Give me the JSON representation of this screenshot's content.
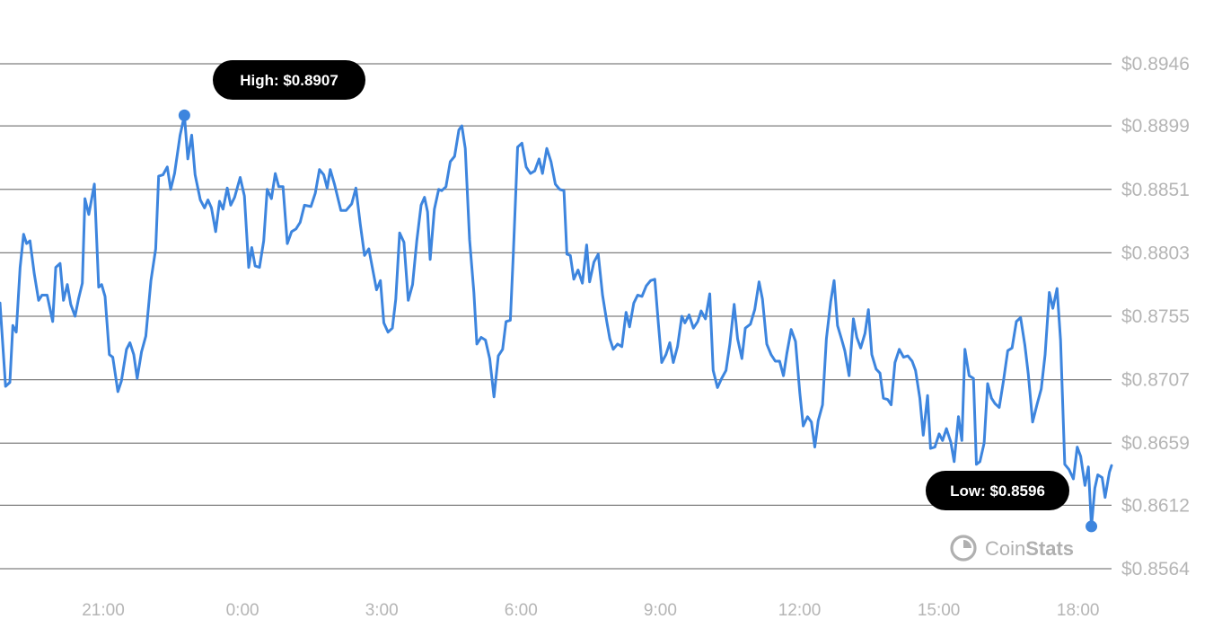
{
  "chart_data": {
    "type": "line",
    "y_ticks": [
      "$0.8946",
      "$0.8899",
      "$0.8851",
      "$0.8803",
      "$0.8755",
      "$0.8707",
      "$0.8659",
      "$0.8612",
      "$0.8564"
    ],
    "y_tick_values": [
      0.8946,
      0.8899,
      0.8851,
      0.8803,
      0.8755,
      0.8707,
      0.8659,
      0.8612,
      0.8564
    ],
    "ylim": [
      0.8564,
      0.8946
    ],
    "x_ticks": [
      {
        "label": "21:00",
        "hour": 21
      },
      {
        "label": "0:00",
        "hour": 24
      },
      {
        "label": "3:00",
        "hour": 27
      },
      {
        "label": "6:00",
        "hour": 30
      },
      {
        "label": "9:00",
        "hour": 33
      },
      {
        "label": "12:00",
        "hour": 36
      },
      {
        "label": "15:00",
        "hour": 39
      },
      {
        "label": "18:00",
        "hour": 42
      }
    ],
    "xlim_hours": [
      18.75,
      42.75
    ],
    "grid": true,
    "line_color": "#3d85de",
    "series": [
      {
        "points": [
          [
            18.75,
            0.8765
          ],
          [
            18.88,
            0.8702
          ],
          [
            18.98,
            0.8705
          ],
          [
            19.05,
            0.8748
          ],
          [
            19.13,
            0.8743
          ],
          [
            19.22,
            0.8792
          ],
          [
            19.3,
            0.8817
          ],
          [
            19.37,
            0.881
          ],
          [
            19.45,
            0.8812
          ],
          [
            19.55,
            0.8787
          ],
          [
            19.65,
            0.8767
          ],
          [
            19.73,
            0.8771
          ],
          [
            19.85,
            0.8771
          ],
          [
            19.98,
            0.8751
          ],
          [
            20.05,
            0.8792
          ],
          [
            20.15,
            0.8795
          ],
          [
            20.23,
            0.8767
          ],
          [
            20.32,
            0.8779
          ],
          [
            20.4,
            0.8764
          ],
          [
            20.5,
            0.8755
          ],
          [
            20.58,
            0.8768
          ],
          [
            20.67,
            0.878
          ],
          [
            20.73,
            0.8844
          ],
          [
            20.82,
            0.8832
          ],
          [
            20.95,
            0.8855
          ],
          [
            21.05,
            0.8777
          ],
          [
            21.12,
            0.8779
          ],
          [
            21.2,
            0.877
          ],
          [
            21.3,
            0.8726
          ],
          [
            21.38,
            0.8724
          ],
          [
            21.5,
            0.8698
          ],
          [
            21.58,
            0.8706
          ],
          [
            21.7,
            0.873
          ],
          [
            21.78,
            0.8735
          ],
          [
            21.87,
            0.8726
          ],
          [
            21.95,
            0.8708
          ],
          [
            22.05,
            0.8728
          ],
          [
            22.15,
            0.874
          ],
          [
            22.27,
            0.8782
          ],
          [
            22.38,
            0.8806
          ],
          [
            22.45,
            0.8861
          ],
          [
            22.55,
            0.8862
          ],
          [
            22.65,
            0.8868
          ],
          [
            22.73,
            0.8851
          ],
          [
            22.82,
            0.8863
          ],
          [
            22.95,
            0.8892
          ],
          [
            23.05,
            0.8907
          ],
          [
            23.13,
            0.8874
          ],
          [
            23.22,
            0.8892
          ],
          [
            23.3,
            0.8862
          ],
          [
            23.42,
            0.8843
          ],
          [
            23.52,
            0.8837
          ],
          [
            23.6,
            0.8843
          ],
          [
            23.68,
            0.8837
          ],
          [
            23.78,
            0.8819
          ],
          [
            23.87,
            0.8842
          ],
          [
            23.95,
            0.8836
          ],
          [
            24.05,
            0.8852
          ],
          [
            24.13,
            0.8839
          ],
          [
            24.22,
            0.8845
          ],
          [
            24.35,
            0.886
          ],
          [
            24.45,
            0.8846
          ],
          [
            24.55,
            0.8792
          ],
          [
            24.62,
            0.8807
          ],
          [
            24.7,
            0.8793
          ],
          [
            24.8,
            0.8792
          ],
          [
            24.9,
            0.8812
          ],
          [
            24.98,
            0.8851
          ],
          [
            25.08,
            0.8844
          ],
          [
            25.17,
            0.8863
          ],
          [
            25.25,
            0.8853
          ],
          [
            25.35,
            0.8853
          ],
          [
            25.45,
            0.881
          ],
          [
            25.55,
            0.8819
          ],
          [
            25.65,
            0.8821
          ],
          [
            25.75,
            0.8826
          ],
          [
            25.85,
            0.8839
          ],
          [
            26.0,
            0.8838
          ],
          [
            26.1,
            0.8848
          ],
          [
            26.2,
            0.8866
          ],
          [
            26.3,
            0.8862
          ],
          [
            26.38,
            0.8852
          ],
          [
            26.45,
            0.8866
          ],
          [
            26.55,
            0.8855
          ],
          [
            26.7,
            0.8835
          ],
          [
            26.82,
            0.8835
          ],
          [
            26.95,
            0.884
          ],
          [
            27.05,
            0.8852
          ],
          [
            27.15,
            0.8825
          ],
          [
            27.25,
            0.8801
          ],
          [
            27.35,
            0.8806
          ],
          [
            27.45,
            0.8789
          ],
          [
            27.53,
            0.8775
          ],
          [
            27.62,
            0.8782
          ],
          [
            27.7,
            0.875
          ],
          [
            27.8,
            0.8743
          ],
          [
            27.9,
            0.8746
          ],
          [
            27.98,
            0.8768
          ],
          [
            28.07,
            0.8818
          ],
          [
            28.17,
            0.8811
          ],
          [
            28.27,
            0.8767
          ],
          [
            28.37,
            0.8779
          ],
          [
            28.47,
            0.8812
          ],
          [
            28.57,
            0.8839
          ],
          [
            28.65,
            0.8845
          ],
          [
            28.72,
            0.8834
          ],
          [
            28.78,
            0.8798
          ],
          [
            28.88,
            0.8836
          ],
          [
            28.98,
            0.8851
          ],
          [
            29.05,
            0.885
          ],
          [
            29.15,
            0.8853
          ],
          [
            29.25,
            0.8872
          ],
          [
            29.35,
            0.8876
          ],
          [
            29.45,
            0.8896
          ],
          [
            29.52,
            0.8899
          ],
          [
            29.6,
            0.8882
          ],
          [
            29.7,
            0.8813
          ],
          [
            29.8,
            0.8773
          ],
          [
            29.87,
            0.8734
          ],
          [
            29.97,
            0.8739
          ],
          [
            30.07,
            0.8737
          ],
          [
            30.17,
            0.8723
          ],
          [
            30.27,
            0.8694
          ],
          [
            30.37,
            0.8725
          ],
          [
            30.47,
            0.873
          ],
          [
            30.55,
            0.8751
          ],
          [
            30.65,
            0.8752
          ],
          [
            30.72,
            0.8802
          ],
          [
            30.82,
            0.8883
          ],
          [
            30.92,
            0.8886
          ],
          [
            31.02,
            0.8868
          ],
          [
            31.12,
            0.8863
          ],
          [
            31.22,
            0.8865
          ],
          [
            31.32,
            0.8874
          ],
          [
            31.4,
            0.8863
          ],
          [
            31.5,
            0.8882
          ],
          [
            31.6,
            0.8872
          ],
          [
            31.7,
            0.8855
          ],
          [
            31.8,
            0.8851
          ],
          [
            31.9,
            0.885
          ],
          [
            31.97,
            0.8802
          ],
          [
            32.05,
            0.8801
          ],
          [
            32.13,
            0.8783
          ],
          [
            32.23,
            0.879
          ],
          [
            32.33,
            0.878
          ],
          [
            32.43,
            0.8809
          ],
          [
            32.5,
            0.8781
          ],
          [
            32.6,
            0.8796
          ],
          [
            32.7,
            0.8802
          ],
          [
            32.8,
            0.8771
          ],
          [
            32.9,
            0.8751
          ],
          [
            32.97,
            0.8738
          ],
          [
            33.05,
            0.873
          ],
          [
            33.15,
            0.8734
          ],
          [
            33.25,
            0.8732
          ],
          [
            33.35,
            0.8758
          ],
          [
            33.43,
            0.8747
          ],
          [
            33.53,
            0.8765
          ],
          [
            33.62,
            0.8771
          ],
          [
            33.72,
            0.877
          ],
          [
            33.82,
            0.8778
          ],
          [
            33.92,
            0.8782
          ],
          [
            34.02,
            0.8783
          ],
          [
            34.1,
            0.875
          ],
          [
            34.18,
            0.872
          ],
          [
            34.28,
            0.8726
          ],
          [
            34.37,
            0.8735
          ],
          [
            34.45,
            0.872
          ],
          [
            34.55,
            0.8732
          ],
          [
            34.65,
            0.8755
          ],
          [
            34.72,
            0.875
          ],
          [
            34.82,
            0.8756
          ],
          [
            34.92,
            0.8746
          ],
          [
            35.02,
            0.8751
          ],
          [
            35.1,
            0.8759
          ],
          [
            35.2,
            0.8753
          ],
          [
            35.3,
            0.8772
          ],
          [
            35.38,
            0.8714
          ],
          [
            35.48,
            0.8701
          ],
          [
            35.58,
            0.8708
          ],
          [
            35.68,
            0.8714
          ],
          [
            35.77,
            0.8734
          ],
          [
            35.87,
            0.8764
          ],
          [
            35.95,
            0.8738
          ],
          [
            36.05,
            0.8723
          ],
          [
            36.13,
            0.8746
          ],
          [
            36.25,
            0.8749
          ],
          [
            36.35,
            0.876
          ],
          [
            36.45,
            0.8781
          ],
          [
            36.53,
            0.8768
          ],
          [
            36.63,
            0.8734
          ],
          [
            36.73,
            0.8726
          ],
          [
            36.83,
            0.8721
          ],
          [
            36.93,
            0.8721
          ],
          [
            37.02,
            0.871
          ],
          [
            37.1,
            0.8727
          ],
          [
            37.2,
            0.8745
          ],
          [
            37.3,
            0.8736
          ],
          [
            37.4,
            0.8697
          ],
          [
            37.48,
            0.8672
          ],
          [
            37.58,
            0.8679
          ],
          [
            37.67,
            0.8675
          ],
          [
            37.75,
            0.8656
          ],
          [
            37.83,
            0.8676
          ],
          [
            37.93,
            0.8688
          ],
          [
            38.02,
            0.8738
          ],
          [
            38.12,
            0.8766
          ],
          [
            38.2,
            0.8782
          ],
          [
            38.28,
            0.8748
          ],
          [
            38.38,
            0.8737
          ],
          [
            38.45,
            0.8729
          ],
          [
            38.55,
            0.871
          ],
          [
            38.65,
            0.8753
          ],
          [
            38.73,
            0.8739
          ],
          [
            38.82,
            0.8731
          ],
          [
            38.92,
            0.8742
          ],
          [
            39.0,
            0.876
          ],
          [
            39.08,
            0.8726
          ],
          [
            39.18,
            0.8715
          ],
          [
            39.27,
            0.8712
          ],
          [
            39.35,
            0.8693
          ],
          [
            39.45,
            0.8692
          ],
          [
            39.53,
            0.8688
          ],
          [
            39.62,
            0.872
          ],
          [
            39.72,
            0.873
          ],
          [
            39.82,
            0.8724
          ],
          [
            39.92,
            0.8725
          ],
          [
            40.02,
            0.8721
          ],
          [
            40.1,
            0.8714
          ],
          [
            40.2,
            0.8693
          ],
          [
            40.28,
            0.8665
          ],
          [
            40.38,
            0.8695
          ],
          [
            40.45,
            0.8655
          ],
          [
            40.55,
            0.8656
          ],
          [
            40.65,
            0.8666
          ],
          [
            40.73,
            0.8661
          ],
          [
            40.82,
            0.867
          ],
          [
            40.92,
            0.866
          ],
          [
            41.0,
            0.8645
          ],
          [
            41.1,
            0.8679
          ],
          [
            41.18,
            0.8661
          ],
          [
            41.25,
            0.873
          ],
          [
            41.35,
            0.871
          ],
          [
            41.45,
            0.8708
          ],
          [
            41.52,
            0.8643
          ],
          [
            41.6,
            0.8645
          ],
          [
            41.7,
            0.8659
          ],
          [
            41.78,
            0.8704
          ],
          [
            41.87,
            0.8693
          ],
          [
            41.95,
            0.8689
          ],
          [
            42.05,
            0.8686
          ],
          [
            42.15,
            0.8706
          ],
          [
            42.25,
            0.8729
          ],
          [
            42.35,
            0.8731
          ],
          [
            42.45,
            0.8751
          ],
          [
            42.55,
            0.8754
          ],
          [
            42.65,
            0.8733
          ],
          [
            42.73,
            0.8711
          ],
          [
            42.83,
            0.8675
          ],
          [
            42.93,
            0.8688
          ],
          [
            43.03,
            0.87
          ],
          [
            43.12,
            0.8726
          ],
          [
            43.22,
            0.8773
          ],
          [
            43.3,
            0.8761
          ],
          [
            43.4,
            0.8776
          ],
          [
            43.48,
            0.8737
          ],
          [
            43.58,
            0.8643
          ],
          [
            43.68,
            0.8639
          ],
          [
            43.78,
            0.8632
          ],
          [
            43.87,
            0.8656
          ],
          [
            43.95,
            0.8649
          ],
          [
            44.05,
            0.8627
          ],
          [
            44.13,
            0.8641
          ],
          [
            44.2,
            0.8596
          ],
          [
            44.28,
            0.8625
          ],
          [
            44.35,
            0.8635
          ],
          [
            44.45,
            0.8633
          ],
          [
            44.52,
            0.8618
          ],
          [
            44.62,
            0.8637
          ],
          [
            44.67,
            0.8642
          ]
        ]
      }
    ],
    "annotations": [
      {
        "label": "High: $0.8907",
        "hour": 23.05,
        "value": 0.8907
      },
      {
        "label": "Low: $0.8596",
        "hour": 44.2,
        "value": 0.8596
      }
    ]
  },
  "brand": {
    "name": "CoinStats",
    "prefix": "Coin",
    "suffix": "Stats",
    "icon": "coinstats-logo-icon"
  }
}
